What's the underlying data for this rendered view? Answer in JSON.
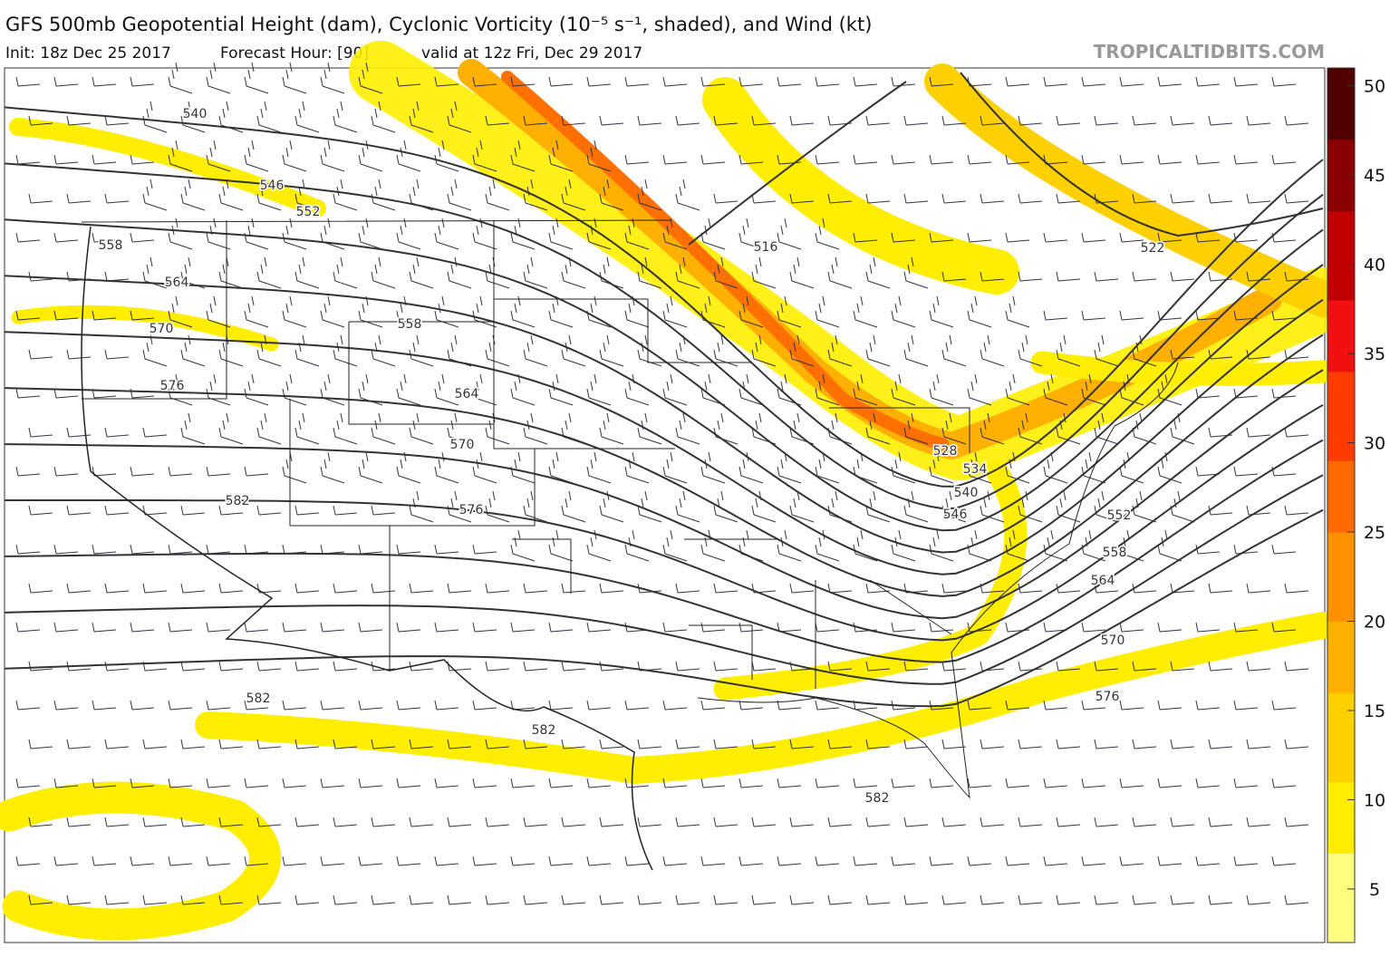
{
  "header": {
    "title": "GFS 500mb Geopotential Height (dam), Cyclonic Vorticity (10⁻⁵ s⁻¹, shaded), and Wind (kt)",
    "init": "Init: 18z Dec 25 2017",
    "forecast_hour": "Forecast Hour: [90]",
    "valid": "valid at 12z Fri, Dec 29 2017",
    "watermark": "TROPICALTIDBITS.COM"
  },
  "colorbar": {
    "lim": [
      2,
      51
    ],
    "ticks": [
      5,
      10,
      15,
      20,
      25,
      30,
      35,
      40,
      45,
      50
    ],
    "colors": [
      "#ffff80",
      "#ffee00",
      "#ffd000",
      "#ffb000",
      "#ff9000",
      "#ff6a00",
      "#ff3c00",
      "#f01010",
      "#c00000",
      "#8a0000",
      "#500000"
    ]
  },
  "contour_labels": [
    540,
    546,
    552,
    558,
    564,
    570,
    576,
    582,
    558,
    564,
    570,
    576,
    516,
    522,
    528,
    534,
    540,
    546,
    552,
    558,
    564,
    570,
    576,
    582,
    582,
    582
  ]
}
